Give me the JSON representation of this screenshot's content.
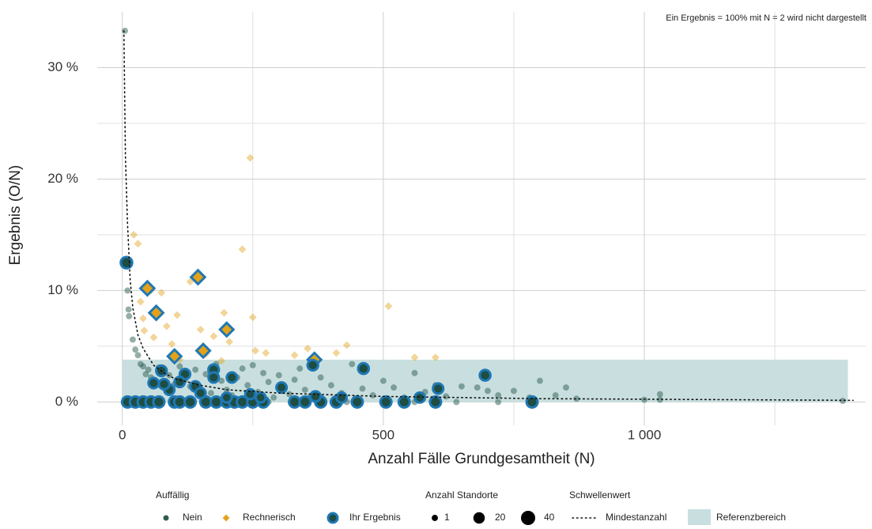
{
  "chart_data": {
    "type": "scatter",
    "annotation": "Ein Ergebnis = 100% mit N = 2 wird nicht dargestellt",
    "x_label": "Anzahl Fälle Grundgesamtheit (N)",
    "y_label": "Ergebnis (O/N)",
    "xlim": [
      -48,
      1424
    ],
    "ylim": [
      -2.1,
      35
    ],
    "xticks": [
      0,
      500,
      {
        "value": 1000,
        "label": "1 000"
      }
    ],
    "yticks": [
      {
        "value": 0,
        "label": "0 %"
      },
      {
        "value": 10,
        "label": "10 %"
      },
      {
        "value": 20,
        "label": "20 %"
      },
      {
        "value": 30,
        "label": "30 %"
      }
    ],
    "xminor": [
      250,
      750,
      1250
    ],
    "yminor": [
      5,
      15,
      25
    ],
    "grid": true,
    "legend_position": "bottom",
    "legend_title": "Auffällig",
    "reference": {
      "name": "Referenzbereich",
      "color": "#c9dfdf",
      "range": [
        0,
        3.8
      ],
      "xrange": [
        0,
        1390
      ]
    },
    "threshold": {
      "title": "Schwellenwert",
      "name": "Mindestanzahl",
      "color": "#111111",
      "x": [
        3,
        6,
        10,
        15,
        20,
        30,
        40,
        60,
        80,
        100,
        150,
        200,
        300,
        500,
        800,
        1400
      ],
      "values": [
        33.3,
        22,
        16,
        11,
        8.5,
        6,
        4.8,
        3.3,
        2.6,
        2.1,
        1.5,
        1.1,
        0.8,
        0.5,
        0.3,
        0.15
      ]
    },
    "size_legend": {
      "title": "Anzahl Standorte",
      "values": [
        1,
        20,
        40
      ]
    },
    "series": [
      {
        "name": "Nein",
        "color": "#2e5e52",
        "marker": "circle",
        "size": 1,
        "x": [
          5,
          10,
          12,
          13,
          20,
          25,
          30,
          35,
          40,
          45,
          50,
          55,
          60,
          70,
          80,
          90,
          100,
          110,
          120,
          130,
          140,
          150,
          160,
          170,
          180,
          190,
          200,
          210,
          220,
          230,
          240,
          250,
          260,
          270,
          280,
          290,
          300,
          310,
          320,
          330,
          340,
          350,
          360,
          380,
          400,
          420,
          440,
          460,
          480,
          500,
          520,
          540,
          560,
          580,
          600,
          620,
          650,
          680,
          700,
          720,
          750,
          780,
          800,
          830,
          850,
          870,
          1000,
          1030,
          1030,
          1380,
          60,
          120,
          200,
          280,
          350,
          430,
          560,
          640,
          720
        ],
        "values": [
          33.3,
          10,
          8.3,
          7.7,
          5.6,
          4.7,
          4.2,
          3.4,
          3.2,
          2.5,
          2.9,
          2.2,
          1.8,
          3.1,
          2.7,
          2.4,
          1.6,
          3.2,
          2.0,
          1.4,
          2.9,
          1.2,
          2.5,
          0.8,
          3.4,
          1.9,
          1.1,
          0.6,
          2.2,
          3.0,
          1.5,
          3.3,
          0.9,
          2.6,
          1.8,
          0.4,
          2.4,
          1.3,
          0.7,
          2.0,
          3.0,
          1.1,
          0.5,
          2.2,
          1.5,
          0.8,
          3.4,
          1.2,
          0.6,
          1.9,
          1.3,
          0.4,
          2.6,
          0.9,
          1.5,
          0.5,
          1.4,
          1.3,
          1.0,
          0.6,
          1.0,
          0.4,
          1.9,
          0.6,
          1.3,
          0.3,
          0.2,
          0.7,
          0.2,
          0.1,
          0,
          0,
          0,
          0,
          0,
          0,
          0,
          0,
          0
        ]
      },
      {
        "name": "Rechnerisch",
        "color": "#e3a21a",
        "marker": "diamond",
        "size": 1,
        "x": [
          22,
          30,
          35,
          40,
          42,
          55,
          60,
          75,
          85,
          95,
          105,
          110,
          130,
          150,
          160,
          175,
          190,
          195,
          205,
          230,
          245,
          250,
          255,
          275,
          330,
          355,
          410,
          430,
          510,
          560,
          600
        ],
        "values": [
          15,
          14.2,
          9,
          7.5,
          6.4,
          10,
          5.8,
          9.8,
          6.8,
          5.2,
          7.8,
          3.8,
          10.8,
          6.5,
          4.3,
          5.9,
          3.7,
          8.0,
          5.4,
          13.7,
          21.9,
          7.6,
          4.6,
          4.4,
          4.2,
          4.8,
          4.4,
          5.1,
          8.6,
          4.0,
          4.0
        ]
      },
      {
        "name": "Ihr Ergebnis",
        "color": "#1d4d43",
        "stroke": "#1f78b4",
        "marker": "circle",
        "x": [
          8,
          48,
          65,
          145,
          100,
          155,
          200,
          368,
          10,
          25,
          40,
          55,
          70,
          100,
          110,
          130,
          160,
          180,
          200,
          215,
          230,
          250,
          270,
          330,
          350,
          380,
          410,
          450,
          505,
          540,
          600,
          785,
          75,
          90,
          120,
          110,
          140,
          175,
          175,
          210,
          245,
          265,
          305,
          365,
          370,
          420,
          462,
          570,
          605,
          695,
          80,
          150,
          200,
          60
        ],
        "values": [
          12.5,
          10.2,
          8.0,
          11.2,
          4.1,
          4.6,
          6.5,
          3.8,
          0,
          0,
          0,
          0,
          0,
          0,
          0,
          0,
          0,
          0,
          0,
          0,
          0,
          0,
          0,
          0,
          0,
          0,
          0,
          0,
          0,
          0,
          0,
          0,
          2.8,
          1.1,
          2.5,
          1.8,
          1.4,
          2.9,
          2.2,
          2.2,
          0.7,
          0.4,
          1.3,
          3.3,
          0.5,
          0.4,
          3.0,
          0.4,
          1.2,
          2.4,
          1.6,
          0.8,
          0.4,
          1.7
        ],
        "sizes": [
          20,
          18,
          18,
          18,
          16,
          16,
          16,
          16,
          18,
          18,
          18,
          18,
          18,
          18,
          18,
          18,
          18,
          18,
          18,
          18,
          18,
          18,
          18,
          18,
          18,
          18,
          18,
          18,
          18,
          18,
          18,
          18,
          15,
          14,
          15,
          14,
          14,
          15,
          14,
          14,
          12,
          12,
          14,
          15,
          14,
          13,
          16,
          13,
          14,
          16,
          14,
          13,
          12,
          14
        ],
        "markers": [
          "circle",
          "diamond",
          "diamond",
          "diamond",
          "diamond",
          "diamond",
          "diamond",
          "diamond",
          "circle",
          "circle",
          "circle",
          "circle",
          "circle",
          "circle",
          "circle",
          "circle",
          "circle",
          "circle",
          "circle",
          "circle",
          "circle",
          "circle",
          "circle",
          "circle",
          "circle",
          "circle",
          "circle",
          "circle",
          "circle",
          "circle",
          "circle",
          "circle",
          "circle",
          "circle",
          "circle",
          "circle",
          "circle",
          "circle",
          "circle",
          "circle",
          "circle",
          "circle",
          "circle",
          "circle",
          "circle",
          "circle",
          "circle",
          "circle",
          "circle",
          "circle",
          "circle",
          "circle",
          "circle",
          "circle"
        ]
      }
    ]
  }
}
